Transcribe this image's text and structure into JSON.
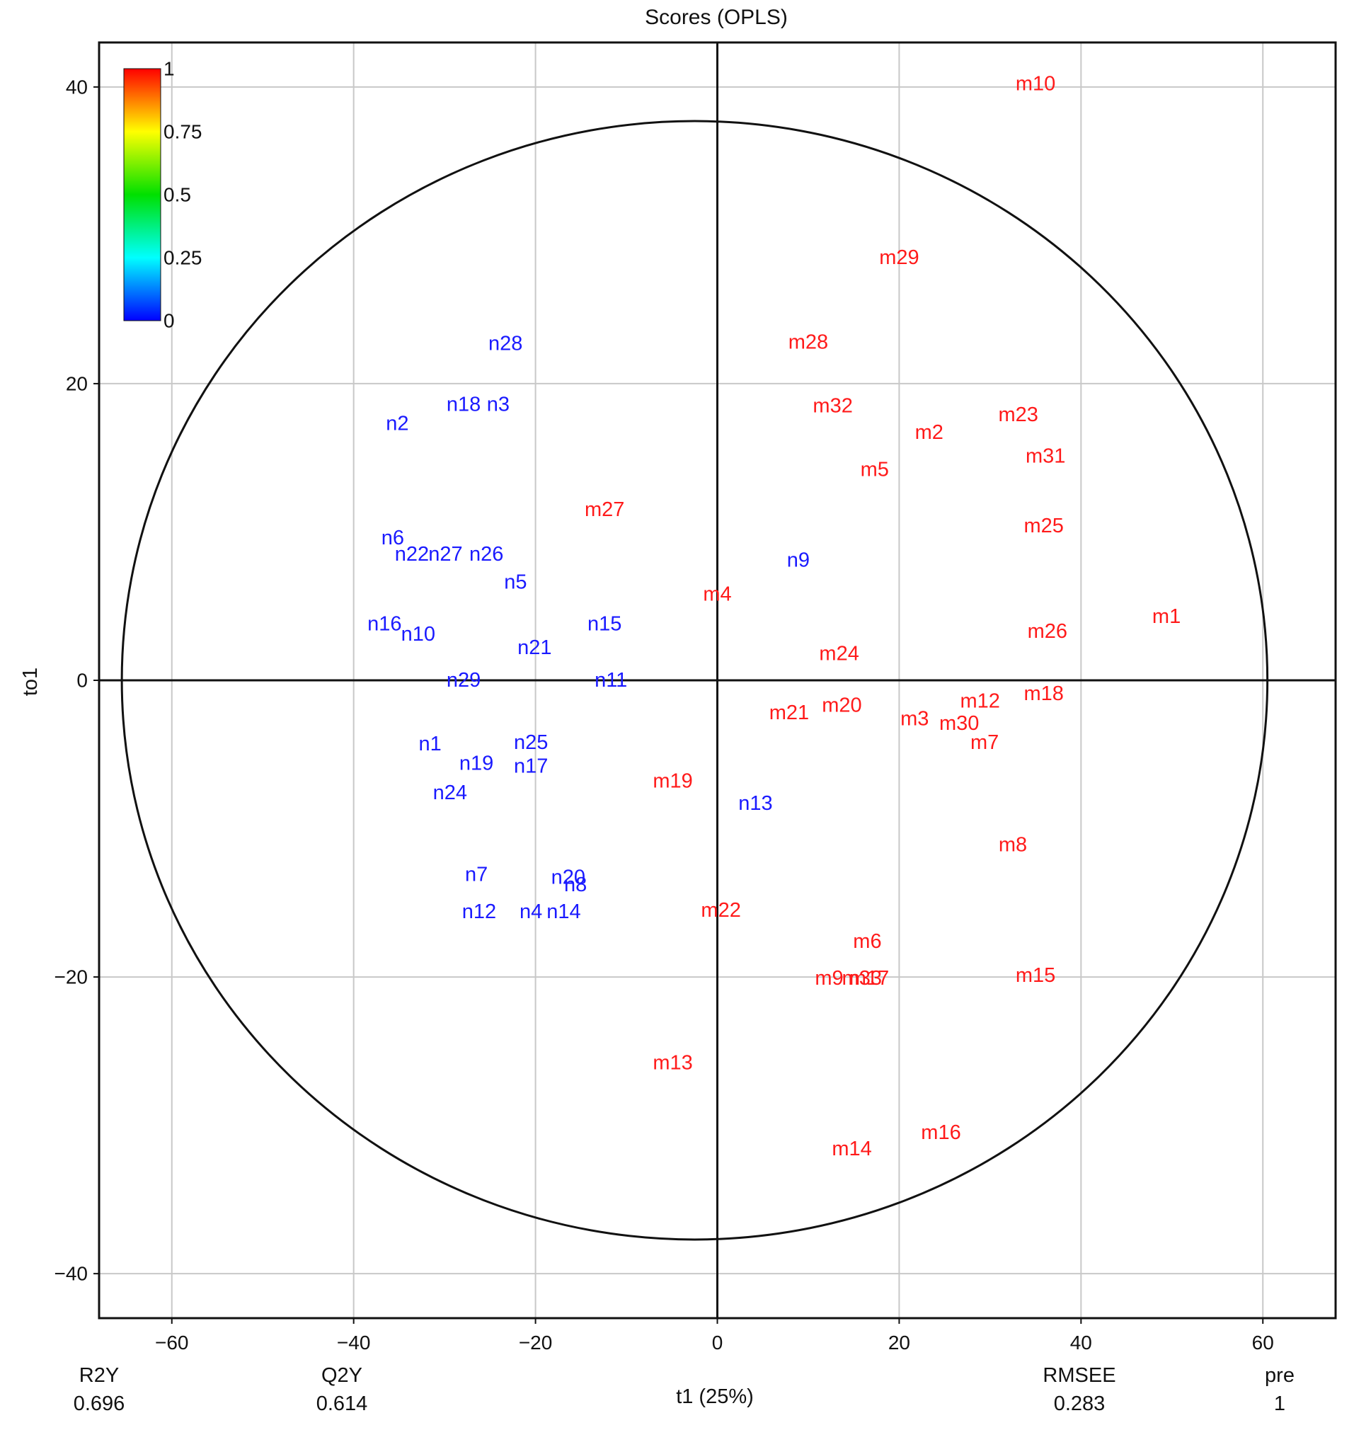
{
  "chart_data": {
    "type": "scatter",
    "title": "Scores (OPLS)",
    "xlabel": "t1 (25%)",
    "ylabel": "to1",
    "xlim": [
      -68,
      68
    ],
    "ylim": [
      -43,
      43
    ],
    "xticks": [
      -60,
      -40,
      -20,
      0,
      20,
      40,
      60
    ],
    "xtick_labels": [
      "−60",
      "−40",
      "−20",
      "0",
      "20",
      "40",
      "60"
    ],
    "yticks": [
      -40,
      -20,
      0,
      20,
      40
    ],
    "ytick_labels": [
      "−40",
      "−20",
      "0",
      "20",
      "40"
    ],
    "grid": true,
    "hotelling_ellipse": {
      "center": [
        -2.5,
        0
      ],
      "rx": 63,
      "ry": 37.7
    },
    "colorbar": {
      "ticks": [
        1,
        0.75,
        0.5,
        0.25,
        0
      ],
      "tick_labels": [
        "1",
        "0.75",
        "0.5",
        "0.25",
        "0"
      ],
      "colors": [
        "#ff0000",
        "#ffff00",
        "#00e000",
        "#00ffff",
        "#0000ff"
      ]
    },
    "series": [
      {
        "name": "",
        "color": "#ff1a1a",
        "points": [
          {
            "label": "m10",
            "x": 35,
            "y": 40.2
          },
          {
            "label": "m29",
            "x": 20,
            "y": 28.5
          },
          {
            "label": "m28",
            "x": 10,
            "y": 22.8
          },
          {
            "label": "m32",
            "x": 12.7,
            "y": 18.5
          },
          {
            "label": "m2",
            "x": 23.3,
            "y": 16.7
          },
          {
            "label": "m23",
            "x": 33.1,
            "y": 17.9
          },
          {
            "label": "m5",
            "x": 17.3,
            "y": 14.2
          },
          {
            "label": "m31",
            "x": 36.1,
            "y": 15.1
          },
          {
            "label": "m27",
            "x": -12.4,
            "y": 11.5
          },
          {
            "label": "m25",
            "x": 35.9,
            "y": 10.4
          },
          {
            "label": "m4",
            "x": 0,
            "y": 5.8
          },
          {
            "label": "m1",
            "x": 49.4,
            "y": 4.3
          },
          {
            "label": "m26",
            "x": 36.3,
            "y": 3.3
          },
          {
            "label": "m24",
            "x": 13.4,
            "y": 1.8
          },
          {
            "label": "m18",
            "x": 35.9,
            "y": -0.9
          },
          {
            "label": "m12",
            "x": 28.9,
            "y": -1.4
          },
          {
            "label": "m20",
            "x": 13.7,
            "y": -1.7
          },
          {
            "label": "m21",
            "x": 7.9,
            "y": -2.2
          },
          {
            "label": "m3",
            "x": 21.7,
            "y": -2.6
          },
          {
            "label": "m30",
            "x": 26.6,
            "y": -2.9
          },
          {
            "label": "m7",
            "x": 29.4,
            "y": -4.2
          },
          {
            "label": "m19",
            "x": -4.9,
            "y": -6.8
          },
          {
            "label": "m8",
            "x": 32.5,
            "y": -11.1
          },
          {
            "label": "m22",
            "x": 0.4,
            "y": -15.5
          },
          {
            "label": "m6",
            "x": 16.5,
            "y": -17.6
          },
          {
            "label": "m9",
            "x": 12.3,
            "y": -20.1
          },
          {
            "label": "m33",
            "x": 15.9,
            "y": -20.1
          },
          {
            "label": "m17",
            "x": 16.7,
            "y": -20.1
          },
          {
            "label": "m15",
            "x": 35,
            "y": -19.9
          },
          {
            "label": "m13",
            "x": -4.9,
            "y": -25.8
          },
          {
            "label": "m16",
            "x": 24.6,
            "y": -30.5
          },
          {
            "label": "m14",
            "x": 14.8,
            "y": -31.6
          }
        ]
      },
      {
        "name": "",
        "color": "#1a1aff",
        "points": [
          {
            "label": "n28",
            "x": -23.3,
            "y": 22.7
          },
          {
            "label": "n18",
            "x": -27.9,
            "y": 18.6
          },
          {
            "label": "n3",
            "x": -24.1,
            "y": 18.6
          },
          {
            "label": "n2",
            "x": -35.2,
            "y": 17.3
          },
          {
            "label": "n6",
            "x": -35.7,
            "y": 9.6
          },
          {
            "label": "n22",
            "x": -33.6,
            "y": 8.5
          },
          {
            "label": "n27",
            "x": -29.9,
            "y": 8.5
          },
          {
            "label": "n26",
            "x": -25.4,
            "y": 8.5
          },
          {
            "label": "n9",
            "x": 8.9,
            "y": 8.1
          },
          {
            "label": "n5",
            "x": -22.2,
            "y": 6.6
          },
          {
            "label": "n16",
            "x": -36.6,
            "y": 3.8
          },
          {
            "label": "n15",
            "x": -12.4,
            "y": 3.8
          },
          {
            "label": "n10",
            "x": -32.9,
            "y": 3.1
          },
          {
            "label": "n21",
            "x": -20.1,
            "y": 2.2
          },
          {
            "label": "n29",
            "x": -27.9,
            "y": 0
          },
          {
            "label": "n11",
            "x": -11.7,
            "y": 0
          },
          {
            "label": "n1",
            "x": -31.6,
            "y": -4.3
          },
          {
            "label": "n25",
            "x": -20.5,
            "y": -4.2
          },
          {
            "label": "n19",
            "x": -26.5,
            "y": -5.6
          },
          {
            "label": "n17",
            "x": -20.5,
            "y": -5.8
          },
          {
            "label": "n24",
            "x": -29.4,
            "y": -7.6
          },
          {
            "label": "n13",
            "x": 4.2,
            "y": -8.3
          },
          {
            "label": "n7",
            "x": -26.5,
            "y": -13.1
          },
          {
            "label": "n20",
            "x": -16.4,
            "y": -13.3
          },
          {
            "label": "n8",
            "x": -15.6,
            "y": -13.8
          },
          {
            "label": "n12",
            "x": -26.2,
            "y": -15.6
          },
          {
            "label": "n4",
            "x": -20.5,
            "y": -15.6
          },
          {
            "label": "n14",
            "x": -16.9,
            "y": -15.6
          }
        ]
      }
    ]
  },
  "footer_stats": [
    {
      "name": "R2Y",
      "value": "0.696"
    },
    {
      "name": "Q2Y",
      "value": "0.614"
    },
    {
      "name": "RMSEE",
      "value": "0.283"
    },
    {
      "name": "pre",
      "value": "1"
    }
  ]
}
